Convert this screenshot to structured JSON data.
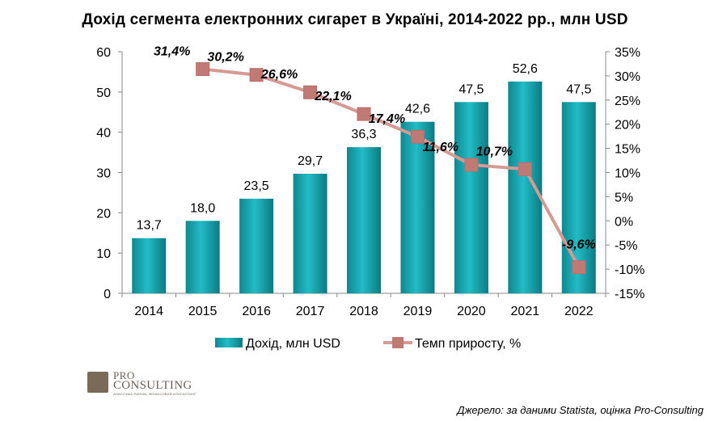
{
  "chart_data": {
    "type": "bar+line",
    "title": "Дохід сегмента електронних сигарет в Україні, 2014-2022 рр., млн USD",
    "categories": [
      "2014",
      "2015",
      "2016",
      "2017",
      "2018",
      "2019",
      "2020",
      "2021",
      "2022"
    ],
    "series": [
      {
        "name": "Дохід, млн USD",
        "type": "bar",
        "axis": "left",
        "values": [
          13.7,
          18.0,
          23.5,
          29.7,
          36.3,
          42.6,
          47.5,
          52.6,
          47.5
        ],
        "labels": [
          "13,7",
          "18,0",
          "23,5",
          "29,7",
          "36,3",
          "42,6",
          "47,5",
          "52,6",
          "47,5"
        ],
        "color": "#1aa3ad"
      },
      {
        "name": "Темп приросту, %",
        "type": "line",
        "axis": "right",
        "values": [
          null,
          31.4,
          30.2,
          26.6,
          22.1,
          17.4,
          11.6,
          10.7,
          -9.6
        ],
        "labels": [
          "",
          "31,4%",
          "30,2%",
          "26,6%",
          "22,1%",
          "17,4%",
          "11,6%",
          "10,7%",
          "-9,6%"
        ],
        "color": "#d59a94",
        "marker_color": "#c07a74"
      }
    ],
    "y_left": {
      "ylim": [
        0,
        60
      ],
      "ticks": [
        "0",
        "10",
        "20",
        "30",
        "40",
        "50",
        "60"
      ]
    },
    "y_right": {
      "ylim": [
        -15,
        35
      ],
      "ticks": [
        "-15%",
        "-10%",
        "-5%",
        "0%",
        "5%",
        "10%",
        "15%",
        "20%",
        "25%",
        "30%",
        "35%"
      ]
    },
    "legend": {
      "position": "bottom",
      "items": [
        "Дохід, млн USD",
        "Темп приросту, %"
      ]
    },
    "grid": false
  },
  "logo": {
    "line1": "PRO",
    "line2": "CONSULTING",
    "tagline": "АНАЛІТИКА РИНКІВ, ФІНАНСОВИЙ КОНСАЛТИНГ"
  },
  "source": "Джерело: за даними Statista, оцінка Pro-Consulting"
}
